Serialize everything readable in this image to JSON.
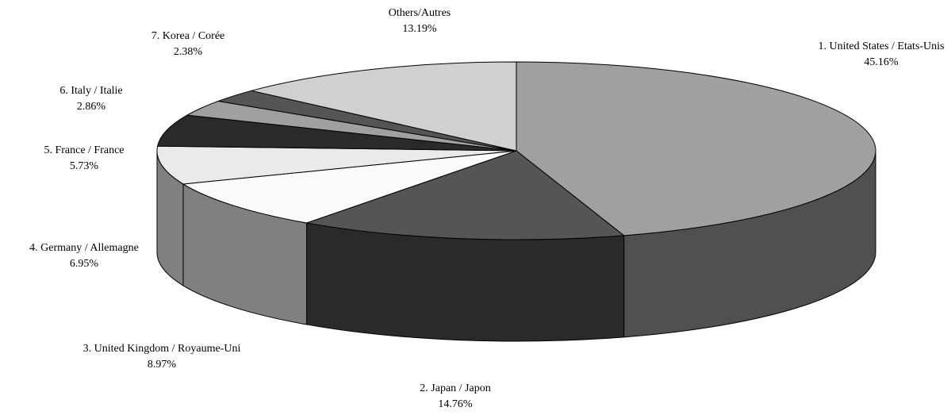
{
  "chart_data": {
    "type": "pie",
    "style": "3d",
    "slices": [
      {
        "label": "1. United States / Etats-Unis",
        "value": 45.16,
        "value_text": "45.16%",
        "color": "#a0a0a0",
        "side_color": "#505050"
      },
      {
        "label": "2. Japan / Japon",
        "value": 14.76,
        "value_text": "14.76%",
        "color": "#555555",
        "side_color": "#2a2a2a"
      },
      {
        "label": "3. United Kingdom / Royaume-Uni",
        "value": 8.97,
        "value_text": "8.97%",
        "color": "#fafafa",
        "side_color": "#808080"
      },
      {
        "label": "4. Germany / Allemagne",
        "value": 6.95,
        "value_text": "6.95%",
        "color": "#eaeaea",
        "side_color": "#808080"
      },
      {
        "label": "5. France / France",
        "value": 5.73,
        "value_text": "5.73%",
        "color": "#2a2a2a",
        "side_color": "#1a1a1a"
      },
      {
        "label": "6. Italy / Italie",
        "value": 2.86,
        "value_text": "2.86%",
        "color": "#a0a0a0",
        "side_color": "#606060"
      },
      {
        "label": "7. Korea / Corée",
        "value": 2.38,
        "value_text": "2.38%",
        "color": "#555555",
        "side_color": "#333333"
      },
      {
        "label": "Others/Autres",
        "value": 13.19,
        "value_text": "13.19%",
        "color": "#d0d0d0",
        "side_color": "#909090"
      }
    ]
  }
}
